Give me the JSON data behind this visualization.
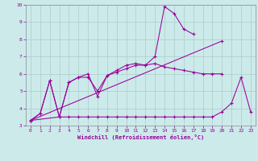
{
  "bg_color": "#cceaea",
  "grid_color": "#aacccc",
  "line_color": "#990099",
  "spine_color": "#888899",
  "xlabel": "Windchill (Refroidissement éolien,°C)",
  "ylim": [
    3,
    10
  ],
  "xlim": [
    -0.5,
    23.5
  ],
  "yticks": [
    3,
    4,
    5,
    6,
    7,
    8,
    9,
    10
  ],
  "xticks": [
    0,
    1,
    2,
    3,
    4,
    5,
    6,
    7,
    8,
    9,
    10,
    11,
    12,
    13,
    14,
    15,
    16,
    17,
    18,
    19,
    20,
    21,
    22,
    23
  ],
  "line1_x": [
    0,
    1,
    2,
    3,
    4,
    5,
    6,
    7,
    8,
    9,
    10,
    11,
    12,
    13,
    14,
    15,
    16,
    17,
    18,
    19,
    20
  ],
  "line1_y": [
    3.3,
    3.7,
    5.6,
    3.5,
    5.5,
    5.8,
    6.0,
    4.7,
    5.9,
    6.1,
    6.3,
    6.5,
    6.5,
    6.6,
    6.4,
    6.3,
    6.2,
    6.1,
    6.0,
    6.0,
    6.0
  ],
  "line2_x": [
    0,
    1,
    2,
    3,
    4,
    5,
    6,
    7,
    8,
    9,
    10,
    11,
    12,
    13,
    14,
    15,
    16,
    17
  ],
  "line2_y": [
    3.3,
    3.7,
    5.6,
    3.5,
    5.5,
    5.8,
    5.8,
    5.0,
    5.9,
    6.2,
    6.5,
    6.6,
    6.5,
    7.0,
    9.9,
    9.5,
    8.6,
    8.3
  ],
  "line3_x": [
    0,
    20
  ],
  "line3_y": [
    3.3,
    7.9
  ],
  "line4_x": [
    0,
    3,
    4,
    5,
    6,
    7,
    8,
    9,
    10,
    11,
    12,
    13,
    14,
    15,
    16,
    17,
    18,
    19,
    20,
    21,
    22,
    23
  ],
  "line4_y": [
    3.3,
    3.5,
    3.5,
    3.5,
    3.5,
    3.5,
    3.5,
    3.5,
    3.5,
    3.5,
    3.5,
    3.5,
    3.5,
    3.5,
    3.5,
    3.5,
    3.5,
    3.5,
    3.8,
    4.3,
    5.8,
    3.8
  ]
}
